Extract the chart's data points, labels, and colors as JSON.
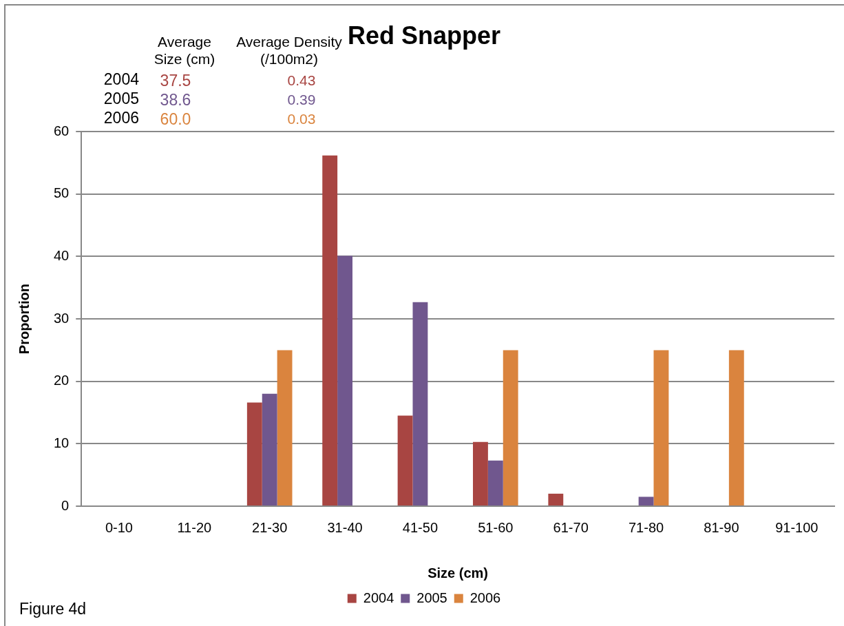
{
  "chart_data": {
    "type": "bar",
    "title": "Red Snapper",
    "xlabel": "Size (cm)",
    "ylabel": "Proportion",
    "categories": [
      "0-10",
      "11-20",
      "21-30",
      "31-40",
      "41-50",
      "51-60",
      "61-70",
      "71-80",
      "81-90",
      "91-100"
    ],
    "series": [
      {
        "name": "2004",
        "color": "#a84542",
        "values": [
          0,
          0,
          16.6,
          56.2,
          14.5,
          10.3,
          2.0,
          0,
          0,
          0
        ]
      },
      {
        "name": "2005",
        "color": "#70578e",
        "values": [
          0,
          0,
          18.0,
          40.1,
          32.7,
          7.3,
          0,
          1.5,
          0,
          0
        ]
      },
      {
        "name": "2006",
        "color": "#da843e",
        "values": [
          0,
          0,
          25,
          0,
          0,
          25,
          0,
          25,
          25,
          0
        ]
      }
    ],
    "ylim": [
      0,
      60
    ],
    "yticks": [
      0,
      10,
      20,
      30,
      40,
      50,
      60
    ],
    "grid": "y",
    "legend": "bottom",
    "annotations": [
      "Average Size (cm)",
      "Average Density (/100m2)",
      "2004",
      "37.5",
      "0.43",
      "2005",
      "38.6",
      "0.39",
      "2006",
      "60.0",
      "0.03",
      "Figure 4d"
    ]
  }
}
